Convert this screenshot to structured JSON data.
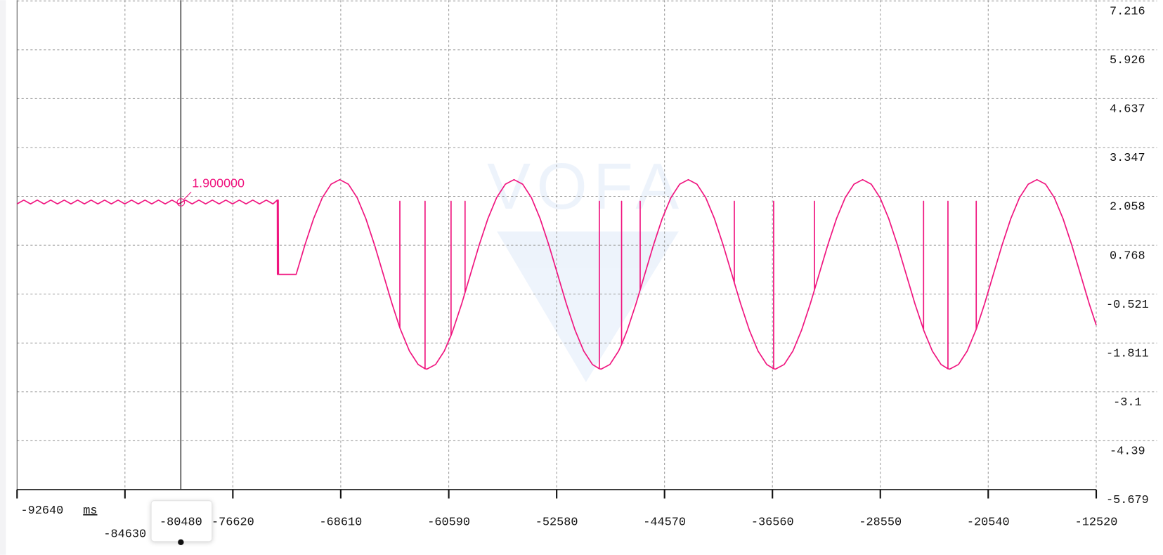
{
  "chart_data": {
    "type": "line",
    "watermark": "VOFA",
    "xlabel": "ms",
    "color": "#f0157f",
    "grid": true,
    "xlim": [
      -92640,
      -12520
    ],
    "ylim": [
      -5.679,
      7.216
    ],
    "xticks": [
      -92640,
      -84630,
      -76620,
      -68610,
      -60590,
      -52580,
      -44570,
      -36560,
      -28550,
      -20540,
      -12520
    ],
    "yticks": [
      7.216,
      5.926,
      4.637,
      3.347,
      2.058,
      0.768,
      -0.521,
      -1.811,
      -3.1,
      -4.39,
      -5.679
    ],
    "cursor": {
      "x": -80480,
      "value": 1.9,
      "value_label": "1.900000"
    },
    "x": [
      -92640,
      -92140,
      -91640,
      -91140,
      -90640,
      -90140,
      -89640,
      -89140,
      -88640,
      -88140,
      -87640,
      -87140,
      -86640,
      -86140,
      -85640,
      -85140,
      -84640,
      -84140,
      -83640,
      -83140,
      -82640,
      -82140,
      -81640,
      -81140,
      -80640,
      -80140,
      -79640,
      -79140,
      -78640,
      -78140,
      -77640,
      -77140,
      -76640,
      -76140,
      -75640,
      -75140,
      -74640,
      -74140,
      -73640,
      -73320,
      -73310,
      -73290,
      -73270,
      -73250,
      -73230,
      -71920,
      -71273,
      -70626,
      -69979,
      -69332,
      -68685,
      -68038,
      -67391,
      -66744,
      -66097,
      -65450,
      -64803,
      -64220,
      -64220,
      -64220,
      -64156,
      -63509,
      -62862,
      -62350,
      -62350,
      -62350,
      -62215,
      -61568,
      -60921,
      -60420,
      -60420,
      -60420,
      -60274,
      -59627,
      -59380,
      -59380,
      -59380,
      -58980,
      -58333,
      -57686,
      -57039,
      -56392,
      -55745,
      -55098,
      -54451,
      -53804,
      -53157,
      -52510,
      -51863,
      -51216,
      -50569,
      -49922,
      -49410,
      -49410,
      -49410,
      -49275,
      -48628,
      -47981,
      -47760,
      -47760,
      -47760,
      -47334,
      -46687,
      -46380,
      -46380,
      -46380,
      -46040,
      -45393,
      -44746,
      -44099,
      -43452,
      -42805,
      -42158,
      -41511,
      -40864,
      -40217,
      -39570,
      -39390,
      -39390,
      -39390,
      -38923,
      -38276,
      -37629,
      -36982,
      -36470,
      -36470,
      -36470,
      -36335,
      -35688,
      -35041,
      -34394,
      -33747,
      -33440,
      -33440,
      -33440,
      -33100,
      -32453,
      -31806,
      -31159,
      -30512,
      -29865,
      -29218,
      -28571,
      -27924,
      -27277,
      -26630,
      -25983,
      -25340,
      -25340,
      -25340,
      -25336,
      -24689,
      -24042,
      -23530,
      -23530,
      -23530,
      -23395,
      -22748,
      -22101,
      -21454,
      -21430,
      -21430,
      -21430,
      -20807,
      -20160,
      -19513,
      -18866,
      -18219,
      -17572,
      -16925,
      -16278,
      -15631,
      -14984,
      -14337,
      -13690,
      -13043,
      -12520
    ],
    "values": [
      1.86,
      1.96,
      1.86,
      1.96,
      1.86,
      1.96,
      1.86,
      1.96,
      1.86,
      1.96,
      1.86,
      1.96,
      1.86,
      1.96,
      1.86,
      1.96,
      1.86,
      1.96,
      1.86,
      1.96,
      1.86,
      1.96,
      1.86,
      1.96,
      1.86,
      1.96,
      1.86,
      1.96,
      1.86,
      1.96,
      1.86,
      1.96,
      1.86,
      1.96,
      1.86,
      1.96,
      1.86,
      1.96,
      1.86,
      1.96,
      0,
      1.96,
      0,
      1.96,
      0,
      0,
      0.773,
      1.469,
      2.023,
      2.378,
      2.5,
      2.378,
      2.023,
      1.469,
      0.773,
      0,
      -0.773,
      -1.41,
      1.93,
      -1.41,
      -1.469,
      -2.023,
      -2.378,
      -2.49,
      1.93,
      -2.49,
      -2.5,
      -2.378,
      -2.023,
      -1.61,
      1.93,
      -1.61,
      -1.469,
      -0.773,
      -0.48,
      1.93,
      -0.48,
      0,
      0.773,
      1.469,
      2.023,
      2.378,
      2.5,
      2.378,
      2.023,
      1.469,
      0.773,
      0,
      -0.773,
      -1.469,
      -2.023,
      -2.378,
      -2.49,
      1.93,
      -2.49,
      -2.5,
      -2.378,
      -2.023,
      -1.85,
      1.93,
      -1.85,
      -1.469,
      -0.773,
      -0.41,
      1.93,
      -0.41,
      0,
      0.773,
      1.469,
      2.023,
      2.378,
      2.5,
      2.378,
      2.023,
      1.469,
      0.773,
      0,
      -0.22,
      1.93,
      -0.22,
      -0.773,
      -1.469,
      -2.023,
      -2.378,
      -2.49,
      1.93,
      -2.49,
      -2.5,
      -2.378,
      -2.023,
      -1.469,
      -0.773,
      -0.41,
      1.93,
      -0.41,
      0,
      0.773,
      1.469,
      2.023,
      2.378,
      2.5,
      2.378,
      2.023,
      1.469,
      0.773,
      0,
      -0.773,
      -1.46,
      1.93,
      -1.46,
      -1.469,
      -2.023,
      -2.378,
      -2.49,
      1.93,
      -2.49,
      -2.5,
      -2.378,
      -2.023,
      -1.469,
      -1.45,
      1.93,
      -1.45,
      -0.773,
      0,
      0.773,
      1.469,
      2.023,
      2.378,
      2.5,
      2.378,
      2.023,
      1.469,
      0.773,
      0,
      -0.773,
      -1.34
    ]
  }
}
